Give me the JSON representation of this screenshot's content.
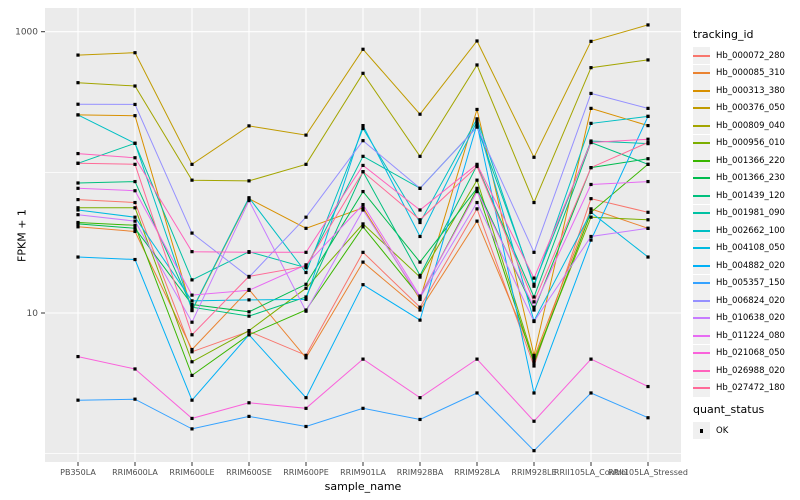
{
  "figure": {
    "panel_bg": "#EBEBEB",
    "grid_color": "#FFFFFF",
    "tick_color": "#333333",
    "tick_label_color": "#4D4D4D",
    "point_color": "#000000",
    "legend_key_bg": "#F0F0F0"
  },
  "chart_data": {
    "type": "line",
    "title": "",
    "xlabel": "sample_name",
    "ylabel": "FPKM + 1",
    "y_scale": "log10",
    "ylim": [
      0.95,
      1250
    ],
    "grid": true,
    "legend_position": "right",
    "y_ticks": [
      {
        "label": "1000",
        "value": 1000
      },
      {
        "label": "10",
        "value": 10
      }
    ],
    "y_minor_gridlines": [
      100,
      1
    ],
    "categories": [
      "PB350LA",
      "RRIM600LA",
      "RRIM600LE",
      "RRIM600SE",
      "RRIM600PE",
      "RRIM901LA",
      "RRIM928BA",
      "RRIM928LA",
      "RRIM928LE",
      "RRII105LA_Control",
      "RRII105LA_Stressed"
    ],
    "series": [
      {
        "name": "Hb_000072_280",
        "color": "#F8766D",
        "values": [
          64,
          61,
          5.3,
          7.4,
          5.0,
          27,
          11,
          55,
          4.2,
          65,
          52
        ]
      },
      {
        "name": "Hb_000085_310",
        "color": "#EA8331",
        "values": [
          41,
          38,
          5.5,
          14.7,
          4.8,
          23,
          10.5,
          45,
          4.8,
          55,
          40
        ]
      },
      {
        "name": "Hb_000313_380",
        "color": "#D89000",
        "values": [
          256,
          253,
          10.4,
          65,
          40,
          56,
          12.5,
          280,
          5.0,
          285,
          215
        ]
      },
      {
        "name": "Hb_000376_050",
        "color": "#C09B00",
        "values": [
          682,
          709,
          114,
          214,
          184,
          750,
          259,
          859,
          128,
          854,
          1117
        ]
      },
      {
        "name": "Hb_000809_040",
        "color": "#A3A500",
        "values": [
          434,
          411,
          88,
          87,
          114,
          506,
          130,
          580,
          61,
          555,
          630
        ]
      },
      {
        "name": "Hb_000956_010",
        "color": "#7CAE00",
        "values": [
          56,
          56,
          4.5,
          7.5,
          15,
          43,
          18,
          88,
          4.6,
          48,
          46
        ]
      },
      {
        "name": "Hb_001366_220",
        "color": "#39B600",
        "values": [
          44,
          42,
          3.6,
          7.0,
          10.5,
          41,
          13,
          76,
          4.4,
          52,
          114
        ]
      },
      {
        "name": "Hb_001366_230",
        "color": "#00BB4E",
        "values": [
          43,
          40,
          11.5,
          10.2,
          16,
          73,
          23,
          77,
          10.5,
          108,
          125
        ]
      },
      {
        "name": "Hb_001439_120",
        "color": "#00BF7D",
        "values": [
          84,
          86,
          11.0,
          9.5,
          13,
          101,
          18.5,
          112,
          13,
          163,
          114
        ]
      },
      {
        "name": "Hb_001981_090",
        "color": "#00C1A3",
        "values": [
          116,
          161,
          17.2,
          27.3,
          21,
          130,
          77,
          210,
          16,
          167,
          160
        ]
      },
      {
        "name": "Hb_002662_100",
        "color": "#00BFC4",
        "values": [
          256,
          161,
          10.5,
          66,
          19.4,
          205,
          44,
          240,
          15.5,
          223,
          250
        ]
      },
      {
        "name": "Hb_004108_050",
        "color": "#00BAE0",
        "values": [
          54,
          48,
          12.2,
          12.4,
          12.5,
          215,
          35,
          230,
          8.8,
          52,
          25
        ]
      },
      {
        "name": "Hb_004882_020",
        "color": "#00B0F6",
        "values": [
          25,
          24,
          2.4,
          7.0,
          2.5,
          15.9,
          8.9,
          220,
          2.7,
          33,
          250
        ]
      },
      {
        "name": "Hb_005357_150",
        "color": "#35A2FF",
        "values": [
          2.4,
          2.44,
          1.5,
          1.84,
          1.56,
          2.1,
          1.75,
          2.7,
          1.05,
          2.7,
          1.8
        ]
      },
      {
        "name": "Hb_006824_020",
        "color": "#9590FF",
        "values": [
          305,
          304,
          37,
          18,
          48,
          168,
          77,
          210,
          27,
          364,
          285
        ]
      },
      {
        "name": "Hb_010638_020",
        "color": "#C77CFF",
        "values": [
          50,
          45,
          8.6,
          63,
          10.3,
          54,
          12.8,
          61,
          8.7,
          35,
          40
        ]
      },
      {
        "name": "Hb_011224_080",
        "color": "#E76BF3",
        "values": [
          77,
          74,
          13.4,
          14.5,
          22,
          59,
          13.2,
          73,
          11,
          82,
          86
        ]
      },
      {
        "name": "Hb_021068_050",
        "color": "#FA62DB",
        "values": [
          4.9,
          4.0,
          1.78,
          2.3,
          2.1,
          4.7,
          2.5,
          4.7,
          1.7,
          4.7,
          3.0
        ]
      },
      {
        "name": "Hb_026988_020",
        "color": "#FF62BC",
        "values": [
          136,
          127,
          27.3,
          27,
          27,
          112,
          54,
          114,
          17.7,
          163,
          172
        ]
      },
      {
        "name": "Hb_027472_180",
        "color": "#FF6A98",
        "values": [
          116,
          114,
          7.0,
          18.2,
          21.5,
          101,
          46,
          110,
          12,
          108,
          163
        ]
      }
    ],
    "legend": {
      "color_title": "tracking_id",
      "shape_title": "quant_status",
      "shape_items": [
        {
          "label": "OK"
        }
      ]
    }
  }
}
